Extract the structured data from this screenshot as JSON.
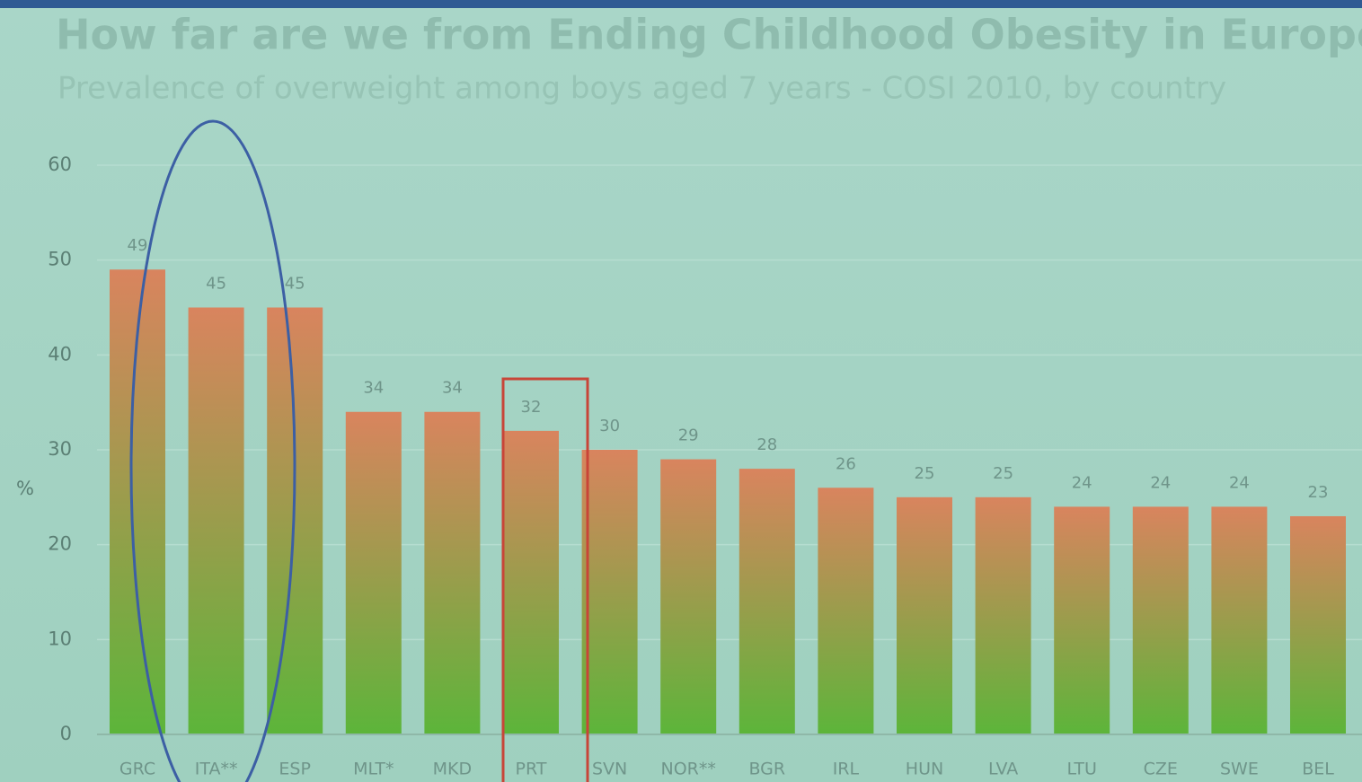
{
  "chart_data": {
    "type": "bar",
    "title": "How far are we from Ending Childhood Obesity in Europe?",
    "subtitle": "Prevalence of overweight among boys aged 7 years - COSI 2010, by country",
    "y_label": "%",
    "categories": [
      "GRC",
      "ITA**",
      "ESP",
      "MLT*",
      "MKD",
      "PRT",
      "SVN",
      "NOR**",
      "BGR",
      "IRL",
      "HUN",
      "LVA",
      "LTU",
      "CZE",
      "SWE",
      "BEL"
    ],
    "values": [
      49,
      45,
      45,
      34,
      34,
      32,
      30,
      29,
      28,
      26,
      25,
      25,
      24,
      24,
      24,
      23
    ],
    "colors": [
      "#d9845e",
      "#5cb53a"
    ],
    "ylim": [
      0,
      60
    ],
    "yticks": [
      0,
      10,
      20,
      30,
      40,
      50,
      60
    ],
    "grid": true
  }
}
